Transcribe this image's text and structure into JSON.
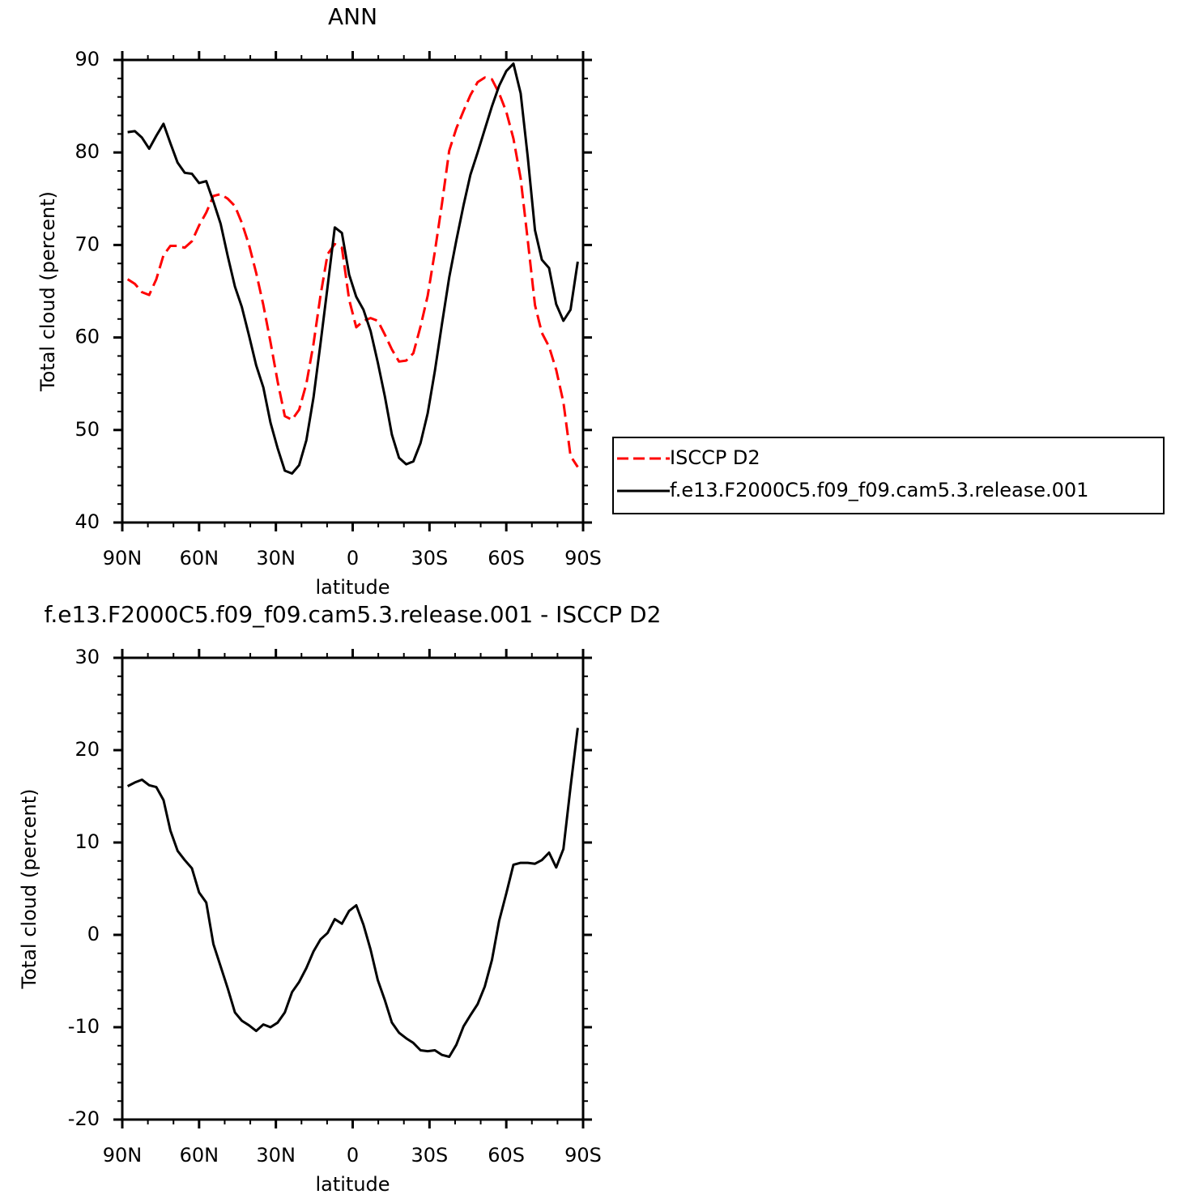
{
  "chart_data": [
    {
      "type": "line",
      "title": "ANN",
      "x_label": "latitude",
      "y_label": "Total cloud (percent)",
      "legend": "right",
      "x": [
        87.9,
        85.1,
        82.3,
        79.5,
        76.7,
        73.9,
        71.2,
        68.4,
        65.6,
        62.8,
        60.0,
        57.2,
        54.4,
        51.6,
        48.8,
        46.0,
        43.3,
        40.5,
        37.7,
        34.9,
        32.1,
        29.3,
        26.5,
        23.7,
        20.9,
        18.1,
        15.3,
        12.6,
        9.8,
        7.0,
        4.2,
        1.4,
        -1.4,
        -4.2,
        -7.0,
        -9.8,
        -12.6,
        -15.3,
        -18.1,
        -20.9,
        -23.7,
        -26.5,
        -29.3,
        -32.1,
        -34.9,
        -37.7,
        -40.5,
        -43.3,
        -46.0,
        -48.8,
        -51.6,
        -54.4,
        -57.2,
        -60.0,
        -62.8,
        -65.6,
        -68.4,
        -71.2,
        -73.9,
        -76.7,
        -79.5,
        -82.3,
        -85.1,
        -87.9
      ],
      "xlim": [
        90,
        -90
      ],
      "xticks": [
        {
          "value": 90,
          "label": "90N"
        },
        {
          "value": 60,
          "label": "60N"
        },
        {
          "value": 30,
          "label": "30N"
        },
        0,
        {
          "value": -30,
          "label": "30S"
        },
        {
          "value": -60,
          "label": "60S"
        },
        {
          "value": -90,
          "label": "90S"
        }
      ],
      "ylim": [
        40,
        90
      ],
      "yticks": [
        40,
        50,
        60,
        70,
        80,
        90
      ],
      "series": [
        {
          "name": "ISCCP D2",
          "color": "#ff0000",
          "dash": true,
          "values": [
            66.3,
            65.8,
            64.9,
            64.6,
            66.3,
            68.9,
            69.9,
            69.9,
            69.7,
            70.4,
            72.1,
            73.5,
            75.3,
            75.5,
            75.0,
            74.2,
            72.4,
            70.0,
            67.0,
            63.5,
            59.5,
            55.2,
            51.5,
            51.1,
            52.2,
            55.0,
            59.3,
            64.5,
            69.0,
            70.1,
            69.7,
            64.1,
            61.1,
            61.8,
            62.1,
            61.8,
            60.3,
            58.7,
            57.4,
            57.5,
            58.3,
            61.2,
            64.5,
            69.3,
            74.5,
            80.2,
            82.6,
            84.5,
            86.2,
            87.6,
            88.1,
            87.9,
            86.4,
            84.4,
            81.5,
            77.2,
            70.5,
            63.5,
            60.5,
            59.0,
            56.5,
            53.0,
            47.2,
            46.0
          ]
        },
        {
          "name": "f.e13.F2000C5.f09_f09.cam5.3.release.001",
          "color": "#000000",
          "dash": false,
          "values": [
            82.2,
            82.3,
            81.6,
            80.4,
            81.8,
            83.1,
            81.0,
            78.9,
            77.8,
            77.7,
            76.7,
            76.9,
            74.7,
            72.3,
            68.8,
            65.5,
            63.3,
            60.2,
            57.0,
            54.6,
            50.8,
            48.0,
            45.6,
            45.3,
            46.2,
            48.9,
            53.5,
            59.3,
            65.5,
            71.9,
            71.3,
            66.8,
            64.4,
            63.0,
            60.7,
            57.3,
            53.6,
            49.5,
            47.0,
            46.3,
            46.6,
            48.6,
            51.8,
            56.4,
            61.5,
            66.5,
            70.5,
            74.3,
            77.6,
            80.0,
            82.5,
            85.0,
            87.2,
            88.8,
            89.6,
            86.4,
            79.5,
            71.6,
            68.4,
            67.5,
            63.6,
            61.8,
            63.0,
            68.2
          ]
        }
      ]
    },
    {
      "type": "line",
      "title": "f.e13.F2000C5.f09_f09.cam5.3.release.001 - ISCCP D2",
      "x_label": "latitude",
      "y_label": "Total cloud (percent)",
      "x": [
        87.9,
        85.1,
        82.3,
        79.5,
        76.7,
        73.9,
        71.2,
        68.4,
        65.6,
        62.8,
        60.0,
        57.2,
        54.4,
        51.6,
        48.8,
        46.0,
        43.3,
        40.5,
        37.7,
        34.9,
        32.1,
        29.3,
        26.5,
        23.7,
        20.9,
        18.1,
        15.3,
        12.6,
        9.8,
        7.0,
        4.2,
        1.4,
        -1.4,
        -4.2,
        -7.0,
        -9.8,
        -12.6,
        -15.3,
        -18.1,
        -20.9,
        -23.7,
        -26.5,
        -29.3,
        -32.1,
        -34.9,
        -37.7,
        -40.5,
        -43.3,
        -46.0,
        -48.8,
        -51.6,
        -54.4,
        -57.2,
        -60.0,
        -62.8,
        -65.6,
        -68.4,
        -71.2,
        -73.9,
        -76.7,
        -79.5,
        -82.3,
        -85.1,
        -87.9
      ],
      "xlim": [
        90,
        -90
      ],
      "xticks": [
        {
          "value": 90,
          "label": "90N"
        },
        {
          "value": 60,
          "label": "60N"
        },
        {
          "value": 30,
          "label": "30N"
        },
        0,
        {
          "value": -30,
          "label": "30S"
        },
        {
          "value": -60,
          "label": "60S"
        },
        {
          "value": -90,
          "label": "90S"
        }
      ],
      "ylim": [
        -20,
        30
      ],
      "yticks": [
        -20,
        -10,
        0,
        10,
        20,
        30
      ],
      "color": "#000000",
      "values": [
        16.1,
        16.5,
        16.8,
        16.2,
        16.0,
        14.6,
        11.3,
        9.1,
        8.1,
        7.2,
        4.6,
        3.5,
        -1.0,
        -3.4,
        -5.8,
        -8.4,
        -9.3,
        -9.8,
        -10.4,
        -9.7,
        -10.0,
        -9.5,
        -8.4,
        -6.2,
        -5.1,
        -3.6,
        -1.8,
        -0.5,
        0.2,
        1.7,
        1.2,
        2.6,
        3.2,
        1.1,
        -1.6,
        -4.9,
        -7.1,
        -9.5,
        -10.6,
        -11.2,
        -11.7,
        -12.5,
        -12.6,
        -12.5,
        -13.0,
        -13.2,
        -11.9,
        -9.9,
        -8.7,
        -7.5,
        -5.6,
        -2.7,
        1.5,
        4.5,
        7.6,
        7.8,
        7.8,
        7.7,
        8.1,
        8.9,
        7.3,
        9.3,
        16.0,
        22.4
      ]
    }
  ]
}
